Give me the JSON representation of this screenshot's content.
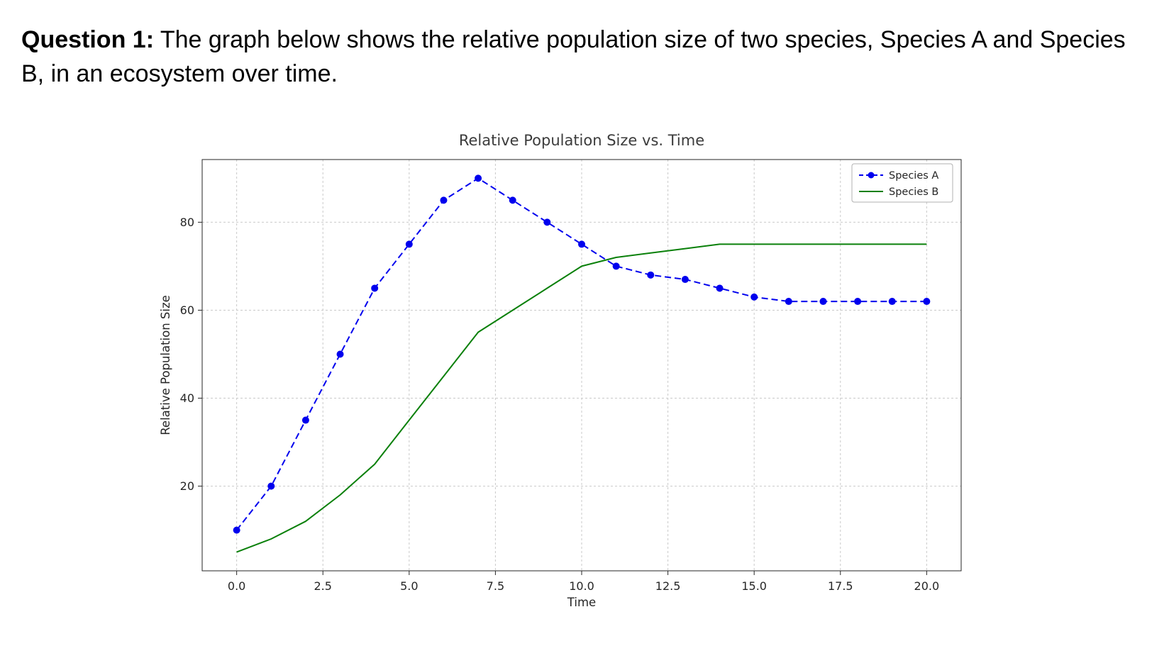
{
  "question": {
    "label": "Question 1:",
    "text": " The graph below shows the relative population size of two species, Species A and Species B, in an ecosystem over time."
  },
  "chart_data": {
    "type": "line",
    "title": "Relative Population Size vs. Time",
    "xlabel": "Time",
    "ylabel": "Relative Population Size",
    "x": [
      0,
      1,
      2,
      3,
      4,
      5,
      6,
      7,
      8,
      9,
      10,
      11,
      12,
      13,
      14,
      15,
      16,
      17,
      18,
      19,
      20
    ],
    "series": [
      {
        "name": "Species A",
        "color": "#0000ee",
        "line_style": "dashed",
        "marker": "circle",
        "values": [
          10,
          20,
          35,
          50,
          65,
          75,
          85,
          90,
          85,
          80,
          75,
          70,
          68,
          67,
          65,
          63,
          62,
          62,
          62,
          62,
          62
        ]
      },
      {
        "name": "Species B",
        "color": "#0a800a",
        "line_style": "solid",
        "marker": "none",
        "values": [
          5,
          8,
          12,
          18,
          25,
          35,
          45,
          55,
          60,
          65,
          70,
          72,
          73,
          74,
          75,
          75,
          75,
          75,
          75,
          75,
          75
        ]
      }
    ],
    "xlim": [
      -1,
      21
    ],
    "ylim": [
      0.75,
      94.25
    ],
    "xticks": [
      0,
      2.5,
      5,
      7.5,
      10,
      12.5,
      15,
      17.5,
      20
    ],
    "xtick_labels": [
      "0.0",
      "2.5",
      "5.0",
      "7.5",
      "10.0",
      "12.5",
      "15.0",
      "17.5",
      "20.0"
    ],
    "yticks": [
      20,
      40,
      60,
      80
    ],
    "ytick_labels": [
      "20",
      "40",
      "60",
      "80"
    ],
    "grid": true,
    "legend_position": "upper right",
    "colors": {
      "grid": "#c9c9c9",
      "spine": "#262626",
      "tick_label": "#262626",
      "title": "#3c3c3c",
      "legend_border": "#b0b0b0",
      "legend_text": "#262626"
    }
  }
}
